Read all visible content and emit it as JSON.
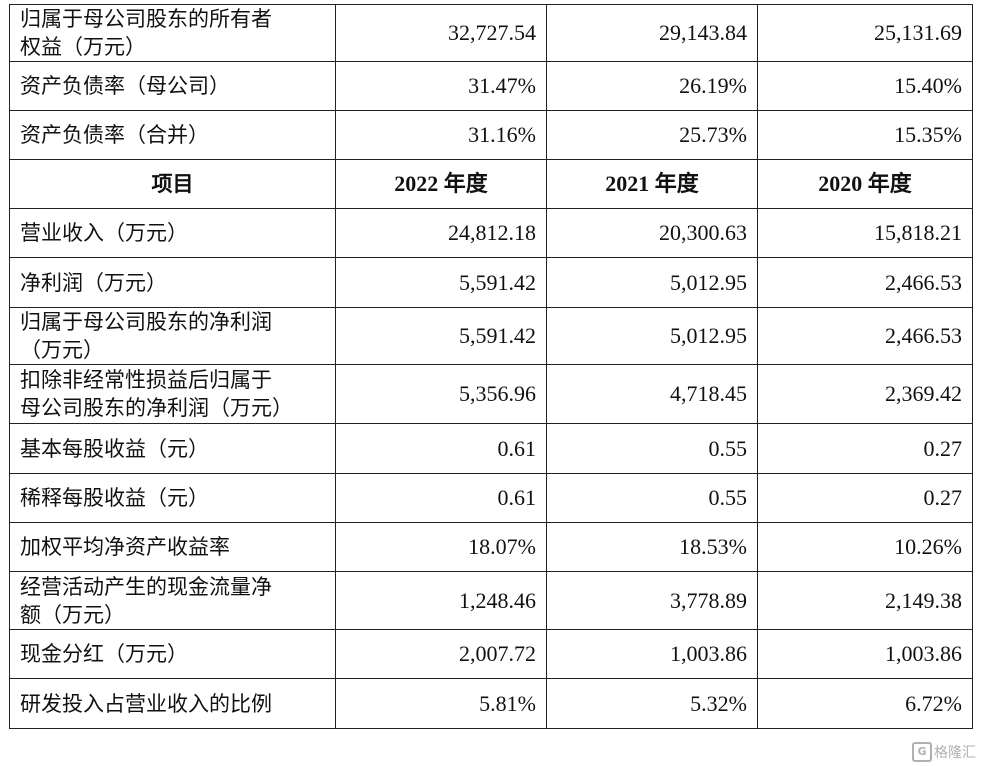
{
  "table": {
    "top_rows": [
      {
        "label": "归属于母公司股东的所有者\n权益（万元）",
        "v2022": "32,727.54",
        "v2021": "29,143.84",
        "v2020": "25,131.69",
        "h": 56
      },
      {
        "label": "资产负债率（母公司）",
        "v2022": "31.47%",
        "v2021": "26.19%",
        "v2020": "15.40%",
        "h": 49
      },
      {
        "label": "资产负债率（合并）",
        "v2022": "31.16%",
        "v2021": "25.73%",
        "v2020": "15.35%",
        "h": 49
      }
    ],
    "header": {
      "item": "项目",
      "y2022": "2022 年度",
      "y2021": "2021 年度",
      "y2020": "2020 年度"
    },
    "rows": [
      {
        "label": "营业收入（万元）",
        "v2022": "24,812.18",
        "v2021": "20,300.63",
        "v2020": "15,818.21"
      },
      {
        "label": "净利润（万元）",
        "v2022": "5,591.42",
        "v2021": "5,012.95",
        "v2020": "2,466.53"
      },
      {
        "label": "归属于母公司股东的净利润\n（万元）",
        "v2022": "5,591.42",
        "v2021": "5,012.95",
        "v2020": "2,466.53"
      },
      {
        "label": "扣除非经常性损益后归属于\n母公司股东的净利润（万元）",
        "v2022": "5,356.96",
        "v2021": "4,718.45",
        "v2020": "2,369.42"
      },
      {
        "label": "基本每股收益（元）",
        "v2022": "0.61",
        "v2021": "0.55",
        "v2020": "0.27"
      },
      {
        "label": "稀释每股收益（元）",
        "v2022": "0.61",
        "v2021": "0.55",
        "v2020": "0.27"
      },
      {
        "label": "加权平均净资产收益率",
        "v2022": "18.07%",
        "v2021": "18.53%",
        "v2020": "10.26%"
      },
      {
        "label": "经营活动产生的现金流量净\n额（万元）",
        "v2022": "1,248.46",
        "v2021": "3,778.89",
        "v2020": "2,149.38"
      },
      {
        "label": "现金分红（万元）",
        "v2022": "2,007.72",
        "v2021": "1,003.86",
        "v2020": "1,003.86"
      },
      {
        "label": "研发投入占营业收入的比例",
        "v2022": "5.81%",
        "v2021": "5.32%",
        "v2020": "6.72%"
      }
    ]
  },
  "watermark": {
    "glyph": "G",
    "text": "格隆汇"
  }
}
